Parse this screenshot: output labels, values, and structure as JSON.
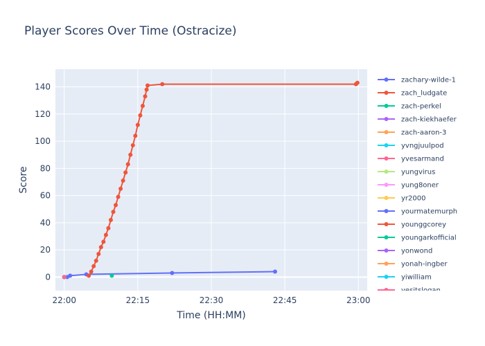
{
  "chart_data": {
    "type": "line",
    "title": "Player Scores Over Time (Ostracize)",
    "xlabel": "Time (HH:MM)",
    "ylabel": "Score",
    "x_ticks": [
      "22:00",
      "22:15",
      "22:30",
      "22:45",
      "23:00"
    ],
    "x_tick_minutes": [
      0,
      15,
      30,
      45,
      60
    ],
    "xlim_minutes": [
      -1.8,
      61.8
    ],
    "ylim": [
      -10,
      153
    ],
    "y_ticks": [
      0,
      20,
      40,
      60,
      80,
      100,
      120,
      140
    ],
    "grid": true,
    "legend_position": "right",
    "series": [
      {
        "name": "zachary-wilde-1",
        "color": "#636efa",
        "points": [
          [
            0.6,
            0
          ],
          [
            1.2,
            1
          ],
          [
            4.5,
            2
          ],
          [
            22,
            3
          ],
          [
            43,
            4
          ]
        ]
      },
      {
        "name": "zach_ludgate",
        "color": "#ef553b",
        "points": [
          [
            5,
            1
          ],
          [
            5.5,
            4
          ],
          [
            6,
            8
          ],
          [
            6.5,
            12
          ],
          [
            7,
            17
          ],
          [
            7.5,
            22
          ],
          [
            8,
            26
          ],
          [
            8.5,
            31
          ],
          [
            9,
            36
          ],
          [
            9.5,
            42
          ],
          [
            10,
            48
          ],
          [
            10.5,
            53
          ],
          [
            11,
            59
          ],
          [
            11.5,
            65
          ],
          [
            12,
            71
          ],
          [
            12.5,
            77
          ],
          [
            13,
            83
          ],
          [
            13.5,
            90
          ],
          [
            14,
            97
          ],
          [
            14.5,
            104
          ],
          [
            15,
            112
          ],
          [
            15.5,
            119
          ],
          [
            16,
            126
          ],
          [
            16.5,
            133
          ],
          [
            16.8,
            138
          ],
          [
            17,
            141
          ],
          [
            20,
            142
          ],
          [
            59.5,
            142
          ],
          [
            59.8,
            143
          ]
        ]
      },
      {
        "name": "zach-perkel",
        "color": "#00cc96",
        "points": [
          [
            9.7,
            1
          ]
        ]
      },
      {
        "name": "zach-kiekhaefer",
        "color": "#ab63fa",
        "points": [
          [
            0,
            0
          ]
        ]
      },
      {
        "name": "zach-aaron-3",
        "color": "#ffa15a",
        "points": [
          [
            0,
            0
          ]
        ]
      },
      {
        "name": "yvngjuulpod",
        "color": "#19d3f3",
        "points": [
          [
            0,
            0
          ]
        ]
      },
      {
        "name": "yvesarmand",
        "color": "#ff6692",
        "points": [
          [
            0,
            0
          ]
        ]
      },
      {
        "name": "yungvirus",
        "color": "#b6e880",
        "points": [
          [
            0,
            0
          ]
        ]
      },
      {
        "name": "yung8oner",
        "color": "#ff97ff",
        "points": [
          [
            0,
            0
          ]
        ]
      },
      {
        "name": "yr2000",
        "color": "#fecb52",
        "points": [
          [
            0,
            0
          ]
        ]
      },
      {
        "name": "yourmatemurph",
        "color": "#636efa",
        "points": [
          [
            0,
            0
          ]
        ]
      },
      {
        "name": "younggcorey",
        "color": "#ef553b",
        "points": [
          [
            0,
            0
          ]
        ]
      },
      {
        "name": "youngarkofficial",
        "color": "#00cc96",
        "points": [
          [
            0,
            0
          ]
        ]
      },
      {
        "name": "yonwond",
        "color": "#ab63fa",
        "points": [
          [
            0,
            0
          ]
        ]
      },
      {
        "name": "yonah-ingber",
        "color": "#ffa15a",
        "points": [
          [
            0,
            0
          ]
        ]
      },
      {
        "name": "yiwilliam",
        "color": "#19d3f3",
        "points": [
          [
            0,
            0
          ]
        ]
      },
      {
        "name": "yesitslogan",
        "color": "#ff6692",
        "points": [
          [
            0,
            0
          ]
        ]
      }
    ]
  }
}
